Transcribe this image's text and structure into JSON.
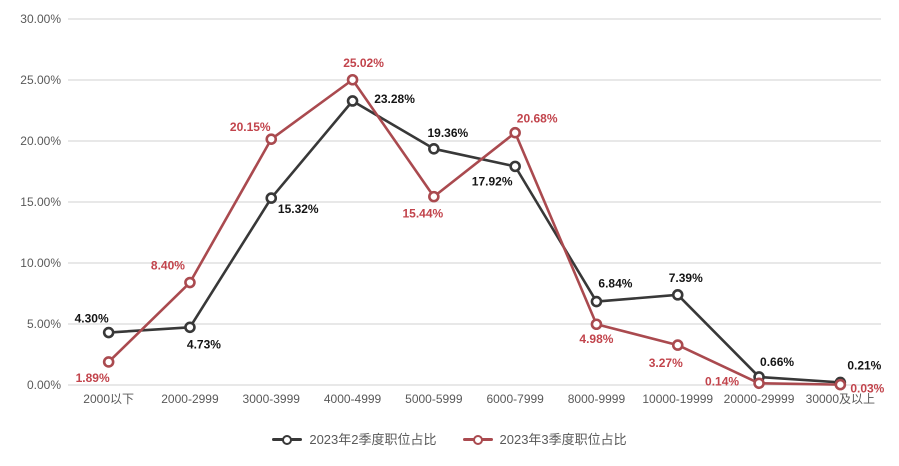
{
  "chart_data": {
    "type": "line",
    "title": "",
    "xlabel": "",
    "ylabel": "",
    "categories": [
      "2000以下",
      "2000-2999",
      "3000-3999",
      "4000-4999",
      "5000-5999",
      "6000-7999",
      "8000-9999",
      "10000-19999",
      "20000-29999",
      "30000及以上"
    ],
    "series": [
      {
        "name": "2023年2季度职位占比",
        "color": "#383838",
        "label_color": "#141414",
        "values": [
          4.3,
          4.73,
          15.32,
          23.28,
          19.36,
          17.92,
          6.84,
          7.39,
          0.66,
          0.21
        ],
        "labels": [
          "4.30%",
          "4.73%",
          "15.32%",
          "23.28%",
          "19.36%",
          "17.92%",
          "6.84%",
          "7.39%",
          "0.66%",
          "0.21%"
        ],
        "label_offsets": [
          [
            -17,
            -14
          ],
          [
            14,
            17
          ],
          [
            27,
            11
          ],
          [
            42,
            -2
          ],
          [
            14,
            -16
          ],
          [
            -23,
            15
          ],
          [
            19,
            -18
          ],
          [
            8,
            -17
          ],
          [
            18,
            -15
          ],
          [
            24,
            -17
          ]
        ]
      },
      {
        "name": "2023年3季度职位占比",
        "color": "#aa4a4f",
        "label_color": "#c2444c",
        "values": [
          1.89,
          8.4,
          20.15,
          25.02,
          15.44,
          20.68,
          4.98,
          3.27,
          0.14,
          0.03
        ],
        "labels": [
          "1.89%",
          "8.40%",
          "20.15%",
          "25.02%",
          "15.44%",
          "20.68%",
          "4.98%",
          "3.27%",
          "0.14%",
          "0.03%"
        ],
        "label_offsets": [
          [
            -16,
            16
          ],
          [
            -22,
            -17
          ],
          [
            -21,
            -12
          ],
          [
            11,
            -17
          ],
          [
            -11,
            17
          ],
          [
            22,
            -14
          ],
          [
            0,
            15
          ],
          [
            -12,
            18
          ],
          [
            -37,
            -2
          ],
          [
            27,
            4
          ]
        ]
      }
    ],
    "y_axis": {
      "min": 0,
      "max": 30,
      "step": 5,
      "ticks": [
        {
          "value": 30,
          "label": "30.00%"
        },
        {
          "value": 25,
          "label": "25.00%"
        },
        {
          "value": 20,
          "label": "20.00%"
        },
        {
          "value": 15,
          "label": "15.00%"
        },
        {
          "value": 10,
          "label": "10.00%"
        },
        {
          "value": 5,
          "label": "5.00%"
        },
        {
          "value": 0,
          "label": "0.00%"
        }
      ]
    },
    "grid": true,
    "legend_position": "bottom",
    "colors": {
      "gridline": "#d9d9d9",
      "axis_text": "#595959",
      "background": "#ffffff",
      "point_fill": "#ffffff"
    }
  }
}
